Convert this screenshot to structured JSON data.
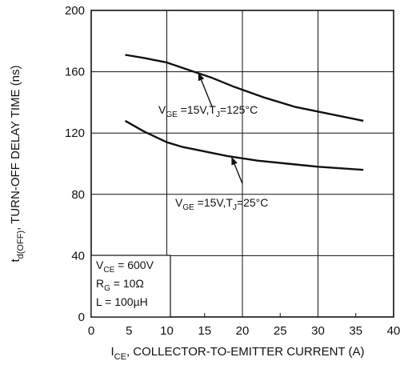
{
  "chart_data": {
    "type": "line",
    "title": "",
    "xlabel": {
      "main": "I",
      "sub": "CE",
      "rest": ", COLLECTOR-TO-EMITTER CURRENT (A)"
    },
    "ylabel": {
      "main": "t",
      "sub": "d(OFF)",
      "rest": ", TURN-OFF DELAY TIME (ns)"
    },
    "xlim": [
      0,
      40
    ],
    "ylim": [
      0,
      200
    ],
    "xticks": [
      "0",
      "5",
      "10",
      "15",
      "20",
      "25",
      "30",
      "35",
      "40"
    ],
    "yticks": [
      "0",
      "40",
      "80",
      "120",
      "160",
      "200"
    ],
    "grid": true,
    "series": [
      {
        "x": [
          4.5,
          7,
          10,
          13,
          16,
          19,
          23,
          27,
          31,
          36
        ],
        "y": [
          171,
          169,
          166,
          161,
          156,
          150,
          143,
          137,
          133,
          128
        ],
        "annotation": {
          "v": "V",
          "vsub": "GE",
          "mid": " =15V,T",
          "tsub": "J",
          "end": "=125°C",
          "arrow_from": [
            16,
            137
          ],
          "arrow_to": [
            14.2,
            159
          ]
        }
      },
      {
        "x": [
          4.5,
          7,
          10,
          12,
          15,
          18,
          22,
          26,
          30,
          36
        ],
        "y": [
          128,
          121,
          114,
          111,
          108,
          105,
          102,
          100,
          98,
          96
        ],
        "annotation": {
          "v": "V",
          "vsub": "GE",
          "mid": " =15V,T",
          "tsub": "J",
          "end": "=25°C",
          "arrow_from": [
            20,
            87
          ],
          "arrow_to": [
            18.6,
            104
          ]
        }
      }
    ],
    "conditions": {
      "vce_main": "V",
      "vce_sub": "CE",
      "vce_rest": " = 600V",
      "rg_main": "R",
      "rg_sub": "G",
      "rg_rest": " = 10Ω",
      "l_text": "L = 100µH"
    }
  }
}
